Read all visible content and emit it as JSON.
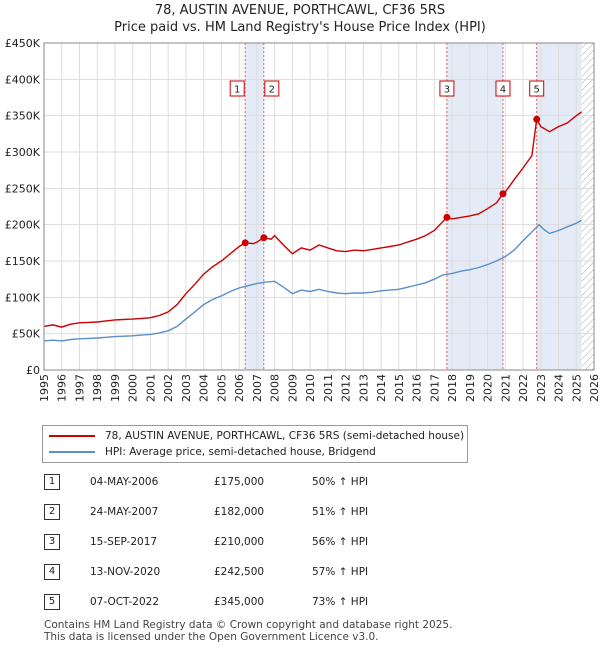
{
  "title_line1": "78, AUSTIN AVENUE, PORTHCAWL, CF36 5RS",
  "title_line2": "Price paid vs. HM Land Registry's House Price Index (HPI)",
  "chart_data": {
    "type": "line",
    "xlim": [
      1995,
      2026
    ],
    "ylim": [
      0,
      450000
    ],
    "x_ticks": [
      1995,
      1996,
      1997,
      1998,
      1999,
      2000,
      2001,
      2002,
      2003,
      2004,
      2005,
      2006,
      2007,
      2008,
      2009,
      2010,
      2011,
      2012,
      2013,
      2014,
      2015,
      2016,
      2017,
      2018,
      2019,
      2020,
      2021,
      2022,
      2023,
      2024,
      2025,
      2026
    ],
    "y_ticks": [
      0,
      50000,
      100000,
      150000,
      200000,
      250000,
      300000,
      350000,
      400000,
      450000
    ],
    "y_tick_labels": [
      "£0",
      "£50K",
      "£100K",
      "£150K",
      "£200K",
      "£250K",
      "£300K",
      "£350K",
      "£400K",
      "£450K"
    ],
    "series": [
      {
        "name": "78, AUSTIN AVENUE, PORTHCAWL, CF36 5RS (semi-detached house)",
        "color": "#cc0000",
        "points": [
          [
            1995.0,
            60000
          ],
          [
            1995.5,
            62000
          ],
          [
            1996.0,
            59000
          ],
          [
            1996.5,
            63000
          ],
          [
            1997.0,
            65000
          ],
          [
            1997.5,
            65500
          ],
          [
            1998.0,
            66000
          ],
          [
            1998.5,
            67500
          ],
          [
            1999.0,
            69000
          ],
          [
            1999.5,
            69500
          ],
          [
            2000.0,
            70000
          ],
          [
            2000.5,
            71000
          ],
          [
            2001.0,
            72000
          ],
          [
            2001.5,
            75000
          ],
          [
            2002.0,
            80000
          ],
          [
            2002.5,
            90000
          ],
          [
            2003.0,
            105000
          ],
          [
            2003.5,
            118000
          ],
          [
            2004.0,
            132000
          ],
          [
            2004.5,
            142000
          ],
          [
            2005.0,
            150000
          ],
          [
            2005.5,
            160000
          ],
          [
            2006.0,
            170000
          ],
          [
            2006.34,
            175000
          ],
          [
            2006.8,
            174000
          ],
          [
            2007.0,
            176000
          ],
          [
            2007.39,
            182000
          ],
          [
            2007.8,
            180000
          ],
          [
            2008.0,
            185000
          ],
          [
            2008.5,
            172000
          ],
          [
            2009.0,
            160000
          ],
          [
            2009.5,
            168000
          ],
          [
            2010.0,
            165000
          ],
          [
            2010.5,
            172000
          ],
          [
            2011.0,
            168000
          ],
          [
            2011.5,
            164000
          ],
          [
            2012.0,
            163000
          ],
          [
            2012.5,
            165000
          ],
          [
            2013.0,
            164000
          ],
          [
            2013.5,
            166000
          ],
          [
            2014.0,
            168000
          ],
          [
            2014.5,
            170000
          ],
          [
            2015.0,
            172000
          ],
          [
            2015.5,
            176000
          ],
          [
            2016.0,
            180000
          ],
          [
            2016.5,
            185000
          ],
          [
            2017.0,
            192000
          ],
          [
            2017.71,
            210000
          ],
          [
            2018.0,
            208000
          ],
          [
            2018.5,
            210000
          ],
          [
            2019.0,
            212000
          ],
          [
            2019.5,
            215000
          ],
          [
            2020.0,
            222000
          ],
          [
            2020.5,
            230000
          ],
          [
            2020.87,
            242500
          ],
          [
            2021.0,
            245000
          ],
          [
            2021.5,
            262000
          ],
          [
            2022.0,
            278000
          ],
          [
            2022.5,
            295000
          ],
          [
            2022.77,
            345000
          ],
          [
            2023.0,
            335000
          ],
          [
            2023.5,
            328000
          ],
          [
            2024.0,
            335000
          ],
          [
            2024.5,
            340000
          ],
          [
            2025.0,
            350000
          ],
          [
            2025.3,
            355000
          ]
        ]
      },
      {
        "name": "HPI: Average price, semi-detached house, Bridgend",
        "color": "#5b8fc9",
        "points": [
          [
            1995.0,
            40000
          ],
          [
            1995.5,
            41000
          ],
          [
            1996.0,
            40000
          ],
          [
            1996.5,
            42000
          ],
          [
            1997.0,
            43000
          ],
          [
            1997.5,
            43500
          ],
          [
            1998.0,
            44000
          ],
          [
            1998.5,
            45000
          ],
          [
            1999.0,
            46000
          ],
          [
            1999.5,
            46500
          ],
          [
            2000.0,
            47000
          ],
          [
            2000.5,
            48000
          ],
          [
            2001.0,
            49000
          ],
          [
            2001.5,
            51000
          ],
          [
            2002.0,
            54000
          ],
          [
            2002.5,
            60000
          ],
          [
            2003.0,
            70000
          ],
          [
            2003.5,
            80000
          ],
          [
            2004.0,
            90000
          ],
          [
            2004.5,
            97000
          ],
          [
            2005.0,
            102000
          ],
          [
            2005.5,
            108000
          ],
          [
            2006.0,
            113000
          ],
          [
            2006.5,
            116000
          ],
          [
            2007.0,
            119000
          ],
          [
            2007.5,
            121000
          ],
          [
            2008.0,
            122000
          ],
          [
            2008.5,
            114000
          ],
          [
            2009.0,
            105000
          ],
          [
            2009.5,
            110000
          ],
          [
            2010.0,
            108000
          ],
          [
            2010.5,
            111000
          ],
          [
            2011.0,
            108000
          ],
          [
            2011.5,
            106000
          ],
          [
            2012.0,
            105000
          ],
          [
            2012.5,
            106000
          ],
          [
            2013.0,
            106000
          ],
          [
            2013.5,
            107000
          ],
          [
            2014.0,
            109000
          ],
          [
            2014.5,
            110000
          ],
          [
            2015.0,
            111000
          ],
          [
            2015.5,
            114000
          ],
          [
            2016.0,
            117000
          ],
          [
            2016.5,
            120000
          ],
          [
            2017.0,
            125000
          ],
          [
            2017.5,
            131000
          ],
          [
            2018.0,
            133000
          ],
          [
            2018.5,
            136000
          ],
          [
            2019.0,
            138000
          ],
          [
            2019.5,
            141000
          ],
          [
            2020.0,
            145000
          ],
          [
            2020.5,
            150000
          ],
          [
            2021.0,
            156000
          ],
          [
            2021.5,
            165000
          ],
          [
            2022.0,
            178000
          ],
          [
            2022.5,
            190000
          ],
          [
            2022.9,
            200000
          ],
          [
            2023.2,
            193000
          ],
          [
            2023.5,
            188000
          ],
          [
            2024.0,
            192000
          ],
          [
            2024.5,
            197000
          ],
          [
            2025.0,
            202000
          ],
          [
            2025.3,
            206000
          ]
        ]
      }
    ],
    "sales": [
      {
        "label": "1",
        "x": 2006.34,
        "y": 175000
      },
      {
        "label": "2",
        "x": 2007.39,
        "y": 182000
      },
      {
        "label": "3",
        "x": 2017.71,
        "y": 210000
      },
      {
        "label": "4",
        "x": 2020.87,
        "y": 242500
      },
      {
        "label": "5",
        "x": 2022.77,
        "y": 345000
      }
    ],
    "shaded_ranges": [
      [
        2006.34,
        2007.39
      ],
      [
        2017.71,
        2020.87
      ],
      [
        2022.77,
        2025.3
      ]
    ],
    "hatched_from": 2025.3
  },
  "legend": {
    "property_label": "78, AUSTIN AVENUE, PORTHCAWL, CF36 5RS (semi-detached house)",
    "hpi_label": "HPI: Average price, semi-detached house, Bridgend"
  },
  "transactions": [
    {
      "num": "1",
      "date": "04-MAY-2006",
      "price": "£175,000",
      "hpi": "50% ↑ HPI"
    },
    {
      "num": "2",
      "date": "24-MAY-2007",
      "price": "£182,000",
      "hpi": "51% ↑ HPI"
    },
    {
      "num": "3",
      "date": "15-SEP-2017",
      "price": "£210,000",
      "hpi": "56% ↑ HPI"
    },
    {
      "num": "4",
      "date": "13-NOV-2020",
      "price": "£242,500",
      "hpi": "57% ↑ HPI"
    },
    {
      "num": "5",
      "date": "07-OCT-2022",
      "price": "£345,000",
      "hpi": "73% ↑ HPI"
    }
  ],
  "footer_line1": "Contains HM Land Registry data © Crown copyright and database right 2025.",
  "footer_line2": "This data is licensed under the Open Government Licence v3.0."
}
